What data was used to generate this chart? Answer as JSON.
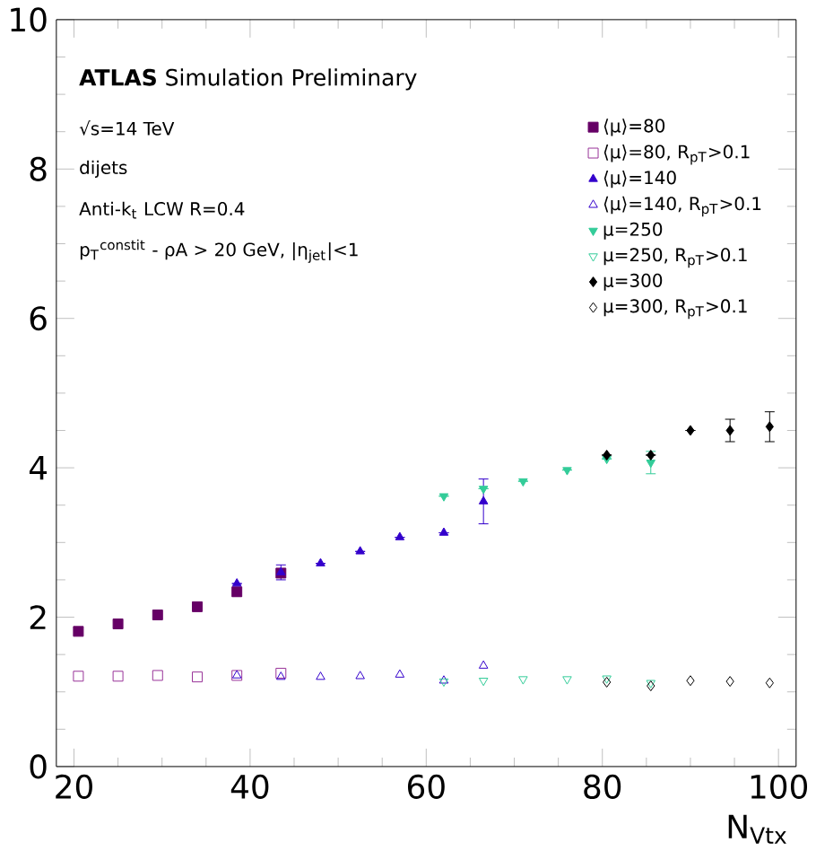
{
  "chart_data": {
    "type": "scatter",
    "xlabel": "N$_{Vtx}$",
    "xlim": [
      18,
      102
    ],
    "ylim": [
      0,
      10
    ],
    "xticks": [
      20,
      40,
      60,
      80,
      100
    ],
    "yticks": [
      0,
      2,
      4,
      6,
      8,
      10
    ],
    "legend": "top right",
    "grid": false,
    "annotations": [
      "**ATLAS** Simulation Preliminary",
      "√s=14 TeV",
      "dijets",
      "Anti-k$_{t}$ LCW R=0.4",
      "p$_{T}$$^{constit}$ - ρA > 20 GeV, |η$_{jet}$|<1"
    ],
    "series": [
      {
        "name": "⟨μ⟩=80",
        "color": "#660066",
        "marker": "square",
        "x": [
          20.5,
          25,
          29.5,
          34,
          38.5,
          43.5
        ],
        "values": [
          1.81,
          1.91,
          2.03,
          2.14,
          2.34,
          2.59
        ]
      },
      {
        "name": "⟨μ⟩=80, R$_{pT}$>0.1",
        "color": "#993399",
        "marker": "square",
        "x": [
          20.5,
          25,
          29.5,
          34,
          38.5,
          43.5
        ],
        "values": [
          1.21,
          1.21,
          1.22,
          1.2,
          1.22,
          1.25
        ]
      },
      {
        "name": "⟨μ⟩=140",
        "color": "#3300cc",
        "marker": "triangle",
        "x": [
          38.5,
          43.5,
          48,
          52.5,
          57,
          62,
          66.5
        ],
        "values": [
          2.45,
          2.6,
          2.72,
          2.88,
          3.07,
          3.13,
          3.55
        ],
        "errors": [
          null,
          0.1,
          null,
          null,
          null,
          null,
          0.3
        ]
      },
      {
        "name": "⟨μ⟩=140, R$_{pT}$>0.1",
        "color": "#3300cc",
        "marker": "triangle",
        "x": [
          38.5,
          43.5,
          48,
          52.5,
          57,
          62,
          66.5
        ],
        "values": [
          1.22,
          1.2,
          1.2,
          1.21,
          1.23,
          1.15,
          1.35
        ]
      },
      {
        "name": "μ=250",
        "color": "#33cc99",
        "marker": "triangle_down",
        "x": [
          62,
          66.5,
          71,
          76,
          80.5,
          85.5
        ],
        "values": [
          3.62,
          3.72,
          3.82,
          3.97,
          4.12,
          4.07
        ],
        "errors": [
          null,
          null,
          null,
          null,
          null,
          0.15
        ]
      },
      {
        "name": "μ=250, R$_{pT}$>0.1",
        "color": "#33cc99",
        "marker": "triangle_down",
        "x": [
          62,
          66.5,
          71,
          76,
          80.5,
          85.5
        ],
        "values": [
          1.14,
          1.15,
          1.17,
          1.17,
          1.18,
          1.12
        ]
      },
      {
        "name": "μ=300",
        "color": "#000000",
        "marker": "diamond",
        "x": [
          80.5,
          85.5,
          90,
          94.5,
          99
        ],
        "values": [
          4.17,
          4.17,
          4.5,
          4.5,
          4.55
        ],
        "errors": [
          null,
          null,
          null,
          0.15,
          0.2
        ]
      },
      {
        "name": "μ=300, R$_{pT}$>0.1",
        "color": "#000000",
        "marker": "diamond",
        "x": [
          80.5,
          85.5,
          90,
          94.5,
          99
        ],
        "values": [
          1.13,
          1.08,
          1.15,
          1.14,
          1.12
        ]
      }
    ]
  }
}
